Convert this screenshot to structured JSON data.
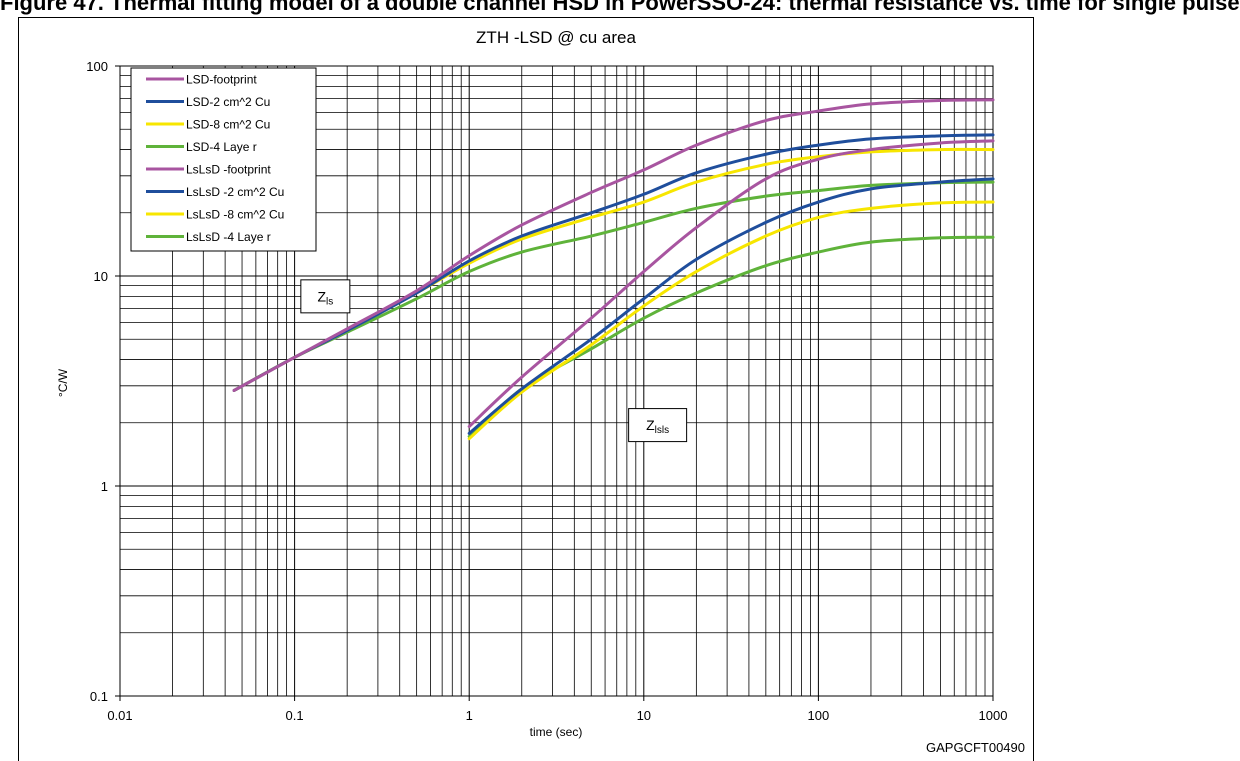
{
  "figure_header": "Figure 47. Thermal fitting model of a double channel HSD in PowerSSO-24: thermal resistance vs. time for single pulse",
  "chart_data": {
    "type": "line",
    "title": "ZTH -LSD @ cu area",
    "xlabel": "time (sec)",
    "ylabel": "°C/W",
    "x_scale": "log",
    "y_scale": "log",
    "xlim": [
      0.01,
      1000
    ],
    "ylim": [
      0.1,
      100
    ],
    "x_ticks": [
      "0.01",
      "0.1",
      "1",
      "10",
      "100",
      "1000"
    ],
    "y_ticks": [
      "0.1",
      "1",
      "10",
      "100"
    ],
    "grid": true,
    "legend_position": "top-left",
    "annotations": [
      {
        "main": "Z",
        "sub": "ls",
        "x": 0.15,
        "y": 8.0
      },
      {
        "main": "Z",
        "sub": "lsls",
        "x": 12,
        "y": 1.95
      }
    ],
    "figure_id": "GAPGCFT00490",
    "series": [
      {
        "name": "LSD-footprint",
        "color": "#a855a0",
        "points": [
          [
            0.045,
            2.85
          ],
          [
            0.1,
            4.1
          ],
          [
            0.2,
            5.6
          ],
          [
            0.5,
            8.5
          ],
          [
            1,
            12.5
          ],
          [
            2,
            17.5
          ],
          [
            5,
            25
          ],
          [
            10,
            32
          ],
          [
            20,
            42
          ],
          [
            50,
            55
          ],
          [
            100,
            61
          ],
          [
            200,
            66
          ],
          [
            500,
            68.5
          ],
          [
            1000,
            69
          ]
        ]
      },
      {
        "name": "LSD-2 cm^2 Cu",
        "color": "#1f4e9c",
        "points": [
          [
            0.045,
            2.85
          ],
          [
            0.1,
            4.1
          ],
          [
            0.2,
            5.5
          ],
          [
            0.5,
            8.3
          ],
          [
            1,
            11.8
          ],
          [
            2,
            15.5
          ],
          [
            5,
            20
          ],
          [
            10,
            24.5
          ],
          [
            20,
            31
          ],
          [
            50,
            38
          ],
          [
            100,
            42
          ],
          [
            200,
            45
          ],
          [
            500,
            46.5
          ],
          [
            1000,
            47
          ]
        ]
      },
      {
        "name": "LSD-8 cm^2 Cu",
        "color": "#f7e600",
        "points": [
          [
            0.045,
            2.85
          ],
          [
            0.1,
            4.1
          ],
          [
            0.2,
            5.5
          ],
          [
            0.5,
            8.3
          ],
          [
            1,
            11.5
          ],
          [
            2,
            15
          ],
          [
            5,
            19
          ],
          [
            10,
            22.5
          ],
          [
            20,
            28
          ],
          [
            50,
            34
          ],
          [
            100,
            37
          ],
          [
            200,
            39
          ],
          [
            500,
            40
          ],
          [
            1000,
            40
          ]
        ]
      },
      {
        "name": "LSD-4 Laye r",
        "color": "#5fb33a",
        "points": [
          [
            0.045,
            2.85
          ],
          [
            0.1,
            4.1
          ],
          [
            0.2,
            5.4
          ],
          [
            0.5,
            7.8
          ],
          [
            1,
            10.5
          ],
          [
            2,
            13
          ],
          [
            5,
            15.5
          ],
          [
            10,
            18
          ],
          [
            20,
            21
          ],
          [
            50,
            24
          ],
          [
            100,
            25.5
          ],
          [
            200,
            27
          ],
          [
            500,
            27.8
          ],
          [
            1000,
            28
          ]
        ]
      },
      {
        "name": "LsLsD -footprint",
        "color": "#a855a0",
        "points": [
          [
            1,
            1.92
          ],
          [
            2,
            3.3
          ],
          [
            5,
            6.3
          ],
          [
            10,
            10.5
          ],
          [
            20,
            17
          ],
          [
            50,
            29
          ],
          [
            100,
            36
          ],
          [
            200,
            40
          ],
          [
            500,
            43
          ],
          [
            1000,
            44
          ]
        ]
      },
      {
        "name": "LsLsD -2 cm^2 Cu",
        "color": "#1f4e9c",
        "points": [
          [
            1,
            1.78
          ],
          [
            2,
            2.9
          ],
          [
            5,
            5
          ],
          [
            10,
            7.8
          ],
          [
            20,
            12
          ],
          [
            50,
            18
          ],
          [
            100,
            22.5
          ],
          [
            200,
            26
          ],
          [
            500,
            28
          ],
          [
            1000,
            29
          ]
        ]
      },
      {
        "name": "LsLsD -8 cm^2 Cu",
        "color": "#f7e600",
        "points": [
          [
            1,
            1.68
          ],
          [
            2,
            2.8
          ],
          [
            5,
            4.7
          ],
          [
            10,
            7.2
          ],
          [
            20,
            10.5
          ],
          [
            50,
            15.5
          ],
          [
            100,
            19
          ],
          [
            200,
            21
          ],
          [
            500,
            22.3
          ],
          [
            1000,
            22.5
          ]
        ]
      },
      {
        "name": "LsLsD -4 Laye r",
        "color": "#5fb33a",
        "points": [
          [
            1,
            1.72
          ],
          [
            2,
            2.9
          ],
          [
            5,
            4.5
          ],
          [
            10,
            6.3
          ],
          [
            20,
            8.3
          ],
          [
            50,
            11.2
          ],
          [
            100,
            13
          ],
          [
            200,
            14.5
          ],
          [
            500,
            15.2
          ],
          [
            1000,
            15.3
          ]
        ]
      }
    ]
  }
}
